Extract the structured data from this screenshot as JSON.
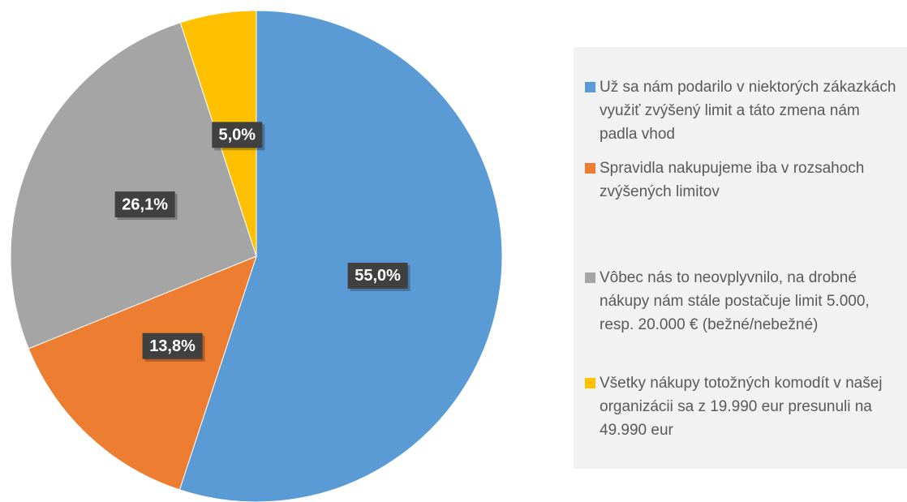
{
  "chart_data": {
    "type": "pie",
    "categories": [
      "Už sa nám podarilo v niektorých zákazkách využiť zvýšený limit a táto zmena nám padla vhod",
      "Spravidla nakupujeme iba v rozsahoch zvýšených limitov",
      "Vôbec nás to neovplyvnilo, na drobné nákupy nám stále postačuje limit 5.000, resp. 20.000 € (bežné/nebežné)",
      "Všetky nákupy totožných komodít v našej organizácii sa z 19.990 eur presunuli na 49.990 eur"
    ],
    "values": [
      55.0,
      13.8,
      26.1,
      5.0
    ],
    "value_labels": [
      "55,0%",
      "13,8%",
      "26,1%",
      "5,0%"
    ],
    "colors": [
      "#5b9bd5",
      "#ed7d31",
      "#a5a5a5",
      "#ffc000"
    ],
    "legend": "right"
  }
}
